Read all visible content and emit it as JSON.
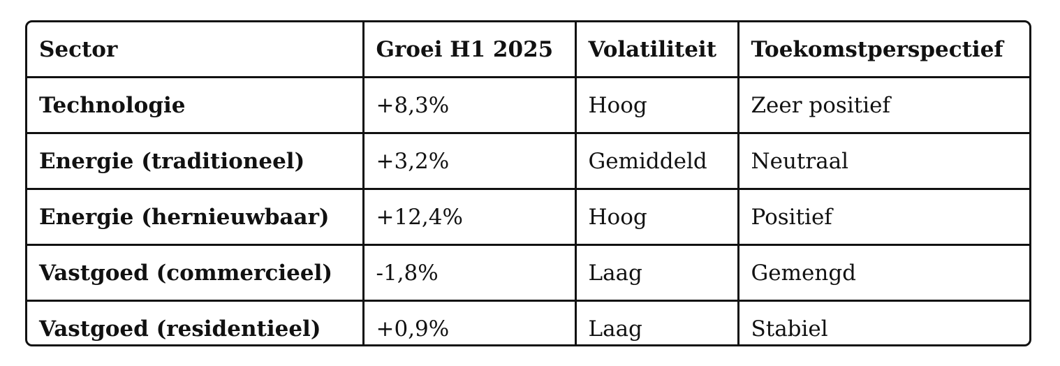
{
  "table": {
    "headers": [
      "Sector",
      "Groei H1 2025",
      "Volatiliteit",
      "Toekomstperspectief"
    ],
    "rows": [
      [
        "Technologie",
        "+8,3%",
        "Hoog",
        "Zeer positief"
      ],
      [
        "Energie (traditioneel)",
        "+3,2%",
        "Gemiddeld",
        "Neutraal"
      ],
      [
        "Energie (hernieuwbaar)",
        "+12,4%",
        "Hoog",
        "Positief"
      ],
      [
        "Vastgoed (commercieel)",
        "-1,8%",
        "Laag",
        "Gemengd"
      ],
      [
        "Vastgoed (residentieel)",
        "+0,9%",
        "Laag",
        "Stabiel"
      ]
    ]
  }
}
